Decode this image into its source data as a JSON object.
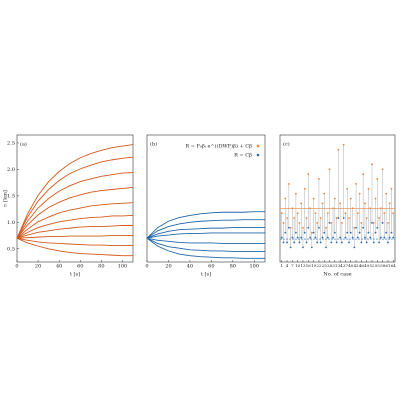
{
  "chart_data": [
    {
      "type": "line",
      "label": "(a)",
      "x_label": "t [s]",
      "y_label": "rᵢ [km]",
      "color": "#d4571b",
      "x": [
        0,
        10,
        20,
        30,
        40,
        50,
        60,
        70,
        80,
        90,
        100,
        110
      ],
      "xlim": [
        0,
        110
      ],
      "xticks": [
        0,
        20,
        40,
        60,
        80,
        100
      ],
      "ylim": [
        0.25,
        2.65
      ],
      "yticks": [
        0.5,
        {
          "value": 1,
          "label": "1.0"
        },
        1.5,
        {
          "value": 2,
          "label": "2.0"
        },
        2.5
      ],
      "series": [
        {
          "values": [
            0.7,
            1.16,
            1.51,
            1.77,
            1.96,
            2.11,
            2.22,
            2.3,
            2.36,
            2.41,
            2.44,
            2.47
          ]
        },
        {
          "values": [
            0.7,
            1.1,
            1.4,
            1.62,
            1.79,
            1.92,
            2.01,
            2.08,
            2.14,
            2.18,
            2.21,
            2.23
          ]
        },
        {
          "values": [
            0.7,
            1.02,
            1.27,
            1.45,
            1.59,
            1.69,
            1.77,
            1.82,
            1.87,
            1.9,
            1.93,
            1.94
          ]
        },
        {
          "values": [
            0.7,
            0.95,
            1.14,
            1.28,
            1.38,
            1.46,
            1.52,
            1.57,
            1.6,
            1.62,
            1.64,
            1.66
          ]
        },
        {
          "values": [
            0.7,
            0.87,
            1.01,
            1.1,
            1.18,
            1.23,
            1.27,
            1.31,
            1.33,
            1.35,
            1.36,
            1.37
          ]
        },
        {
          "values": [
            0.7,
            0.81,
            0.9,
            0.96,
            1.01,
            1.04,
            1.07,
            1.09,
            1.1,
            1.12,
            1.12,
            1.13
          ]
        },
        {
          "values": [
            0.7,
            0.76,
            0.81,
            0.84,
            0.87,
            0.89,
            0.91,
            0.92,
            0.92,
            0.93,
            0.94,
            0.94
          ]
        },
        {
          "values": [
            0.7,
            0.71,
            0.72,
            0.73,
            0.73,
            0.74,
            0.74,
            0.74,
            0.74,
            0.75,
            0.75,
            0.75
          ]
        },
        {
          "values": [
            0.7,
            0.66,
            0.63,
            0.61,
            0.6,
            0.59,
            0.58,
            0.57,
            0.57,
            0.56,
            0.56,
            0.56
          ]
        },
        {
          "values": [
            0.7,
            0.61,
            0.55,
            0.5,
            0.46,
            0.43,
            0.41,
            0.4,
            0.39,
            0.38,
            0.37,
            0.37
          ]
        }
      ]
    },
    {
      "type": "line",
      "label": "(b)",
      "x_label": "t [s]",
      "color": "#1f66a8",
      "x": [
        0,
        10,
        20,
        30,
        40,
        50,
        60,
        70,
        80,
        90,
        100,
        110
      ],
      "xlim": [
        0,
        110
      ],
      "xticks": [
        0,
        20,
        40,
        60,
        80,
        100
      ],
      "ylim": [
        0.25,
        2.65
      ],
      "series": [
        {
          "values": [
            0.7,
            0.9,
            1.02,
            1.09,
            1.13,
            1.16,
            1.18,
            1.19,
            1.19,
            1.19,
            1.2,
            1.2
          ]
        },
        {
          "values": [
            0.7,
            0.84,
            0.92,
            0.97,
            1.0,
            1.02,
            1.03,
            1.04,
            1.04,
            1.05,
            1.05,
            1.05
          ]
        },
        {
          "values": [
            0.7,
            0.78,
            0.83,
            0.86,
            0.87,
            0.88,
            0.89,
            0.89,
            0.9,
            0.9,
            0.9,
            0.9
          ]
        },
        {
          "values": [
            0.7,
            0.74,
            0.76,
            0.78,
            0.79,
            0.79,
            0.8,
            0.8,
            0.8,
            0.8,
            0.8,
            0.8
          ]
        },
        {
          "values": [
            0.7,
            0.66,
            0.64,
            0.62,
            0.61,
            0.61,
            0.61,
            0.6,
            0.6,
            0.6,
            0.6,
            0.6
          ]
        },
        {
          "values": [
            0.7,
            0.6,
            0.54,
            0.51,
            0.48,
            0.47,
            0.46,
            0.46,
            0.45,
            0.45,
            0.45,
            0.45
          ]
        },
        {
          "values": [
            0.7,
            0.55,
            0.46,
            0.4,
            0.37,
            0.35,
            0.34,
            0.33,
            0.33,
            0.32,
            0.32,
            0.32
          ]
        }
      ]
    },
    {
      "type": "scatter",
      "label": "(c)",
      "x_label": "No. of case",
      "x": [
        1,
        2,
        3,
        4,
        5,
        6,
        7,
        8,
        9,
        10,
        11,
        12,
        13,
        14,
        15,
        16,
        17,
        18,
        19,
        20,
        21,
        22,
        23,
        24,
        25,
        26,
        27,
        28,
        29,
        30,
        31,
        32,
        33,
        34,
        35,
        36,
        37,
        38,
        39,
        40,
        41,
        42,
        43,
        44,
        45,
        46,
        47,
        48,
        49,
        50,
        51,
        52,
        53,
        54,
        55,
        56,
        57,
        58,
        59,
        60,
        61,
        62,
        63,
        64
      ],
      "xlim": [
        0,
        65
      ],
      "xticks": [
        1,
        4,
        7,
        10,
        13,
        16,
        19,
        22,
        25,
        28,
        31,
        34,
        37,
        40,
        43,
        46,
        49,
        52,
        55,
        58,
        61,
        64
      ],
      "ylim": [
        0,
        2.6
      ],
      "series": [
        {
          "name": "R = F₀βᵢ e^((DWF)β) + Cβ",
          "color": "#e8853a",
          "values": [
            1.0,
            0.8,
            1.3,
            0.9,
            1.6,
            0.7,
            1.1,
            0.9,
            1.4,
            1.0,
            0.8,
            1.2,
            0.7,
            1.5,
            0.9,
            1.8,
            1.1,
            0.6,
            1.3,
            1.0,
            0.8,
            1.7,
            0.9,
            1.2,
            1.4,
            0.7,
            1.0,
            1.9,
            0.8,
            1.1,
            1.3,
            0.9,
            2.3,
            1.2,
            0.8,
            2.4,
            1.0,
            1.5,
            0.9,
            1.3,
            1.1,
            0.7,
            1.6,
            1.0,
            1.4,
            0.8,
            1.8,
            1.2,
            0.9,
            1.5,
            1.1,
            2.0,
            0.8,
            1.3,
            1.7,
            0.9,
            1.1,
            1.9,
            1.0,
            1.4,
            0.8,
            1.2,
            1.5,
            1.0
          ]
        },
        {
          "name": "R = Cβ",
          "color": "#2a6cb0",
          "values": [
            0.5,
            0.4,
            0.6,
            0.4,
            0.7,
            0.3,
            0.5,
            0.4,
            0.6,
            0.5,
            0.4,
            0.5,
            0.3,
            0.6,
            0.4,
            0.7,
            0.5,
            0.3,
            0.6,
            0.5,
            0.4,
            0.7,
            0.4,
            0.5,
            0.6,
            0.3,
            0.5,
            0.8,
            0.4,
            0.5,
            0.6,
            0.4,
            0.9,
            0.5,
            0.4,
            0.9,
            0.5,
            0.6,
            0.4,
            0.6,
            0.5,
            0.3,
            0.7,
            0.5,
            0.6,
            0.4,
            0.7,
            0.5,
            0.4,
            0.6,
            0.5,
            0.8,
            0.4,
            0.6,
            0.7,
            0.4,
            0.5,
            0.8,
            0.5,
            0.6,
            0.4,
            0.5,
            0.6,
            0.5
          ]
        }
      ],
      "hlines": [
        {
          "value": 1.1,
          "color": "#e8853a"
        },
        {
          "value": 0.47,
          "color": "#2a6cb0"
        }
      ]
    }
  ]
}
